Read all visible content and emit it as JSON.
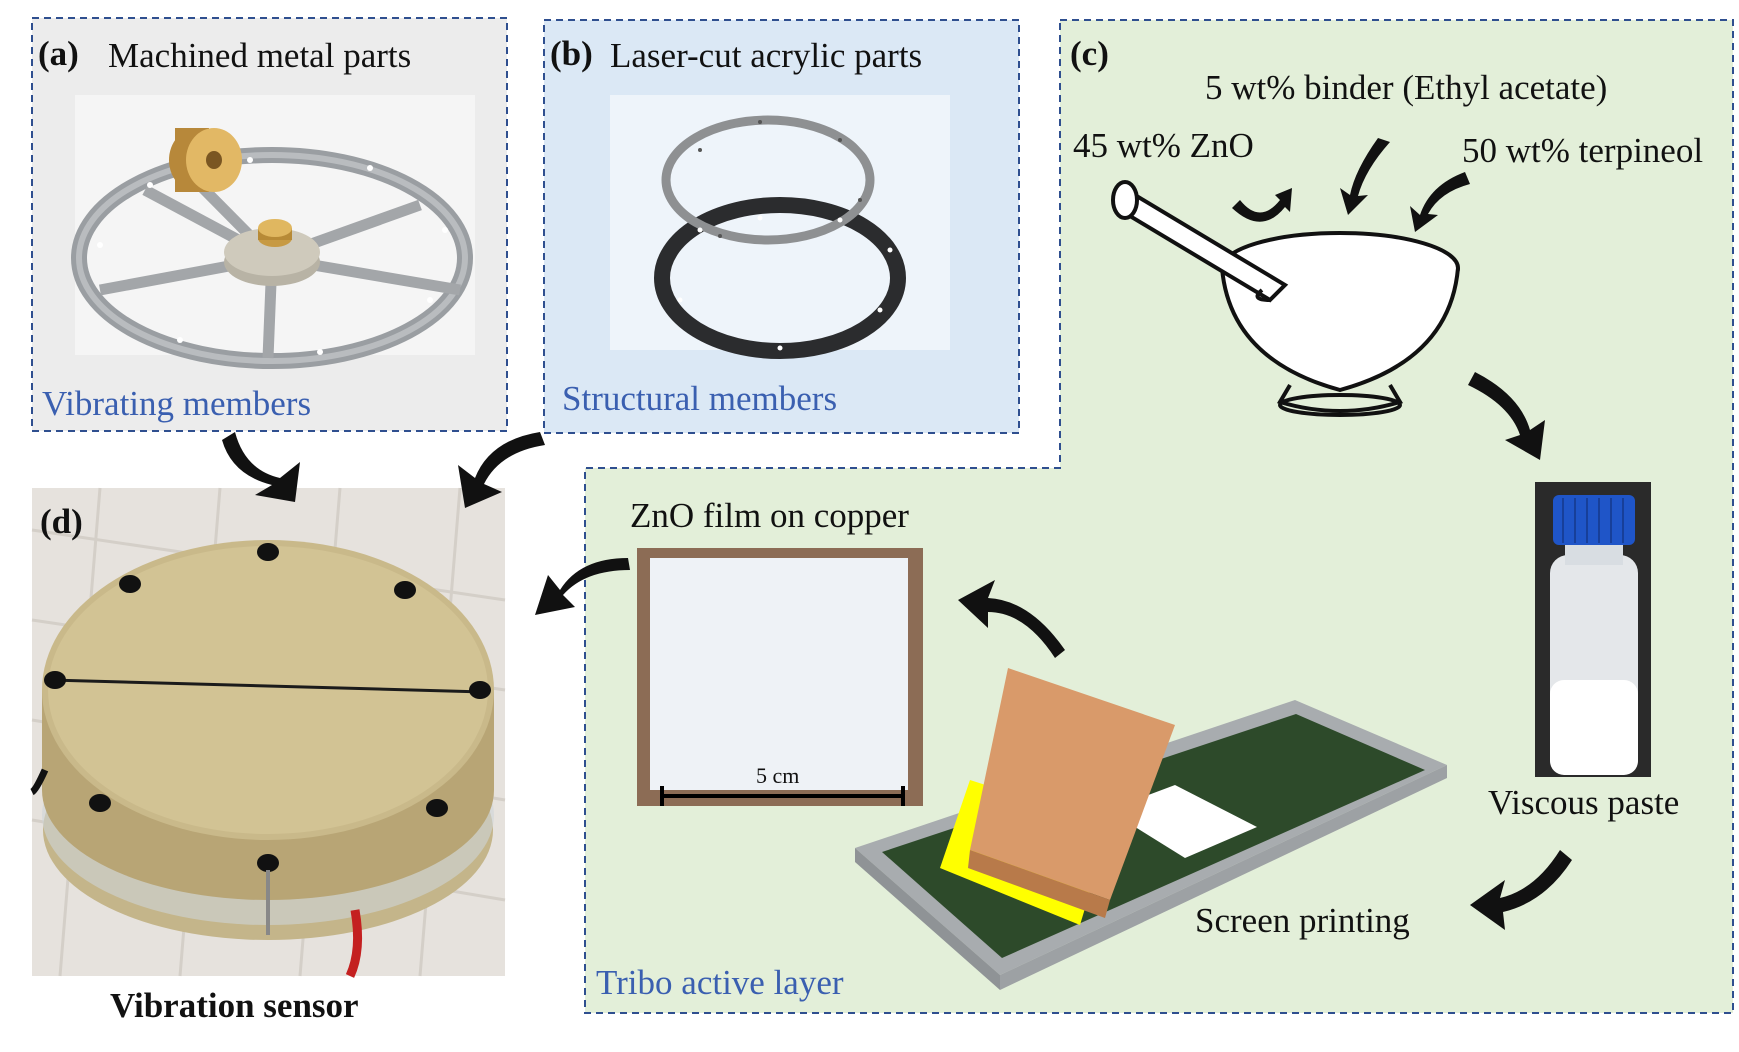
{
  "panels": {
    "a": {
      "letter": "(a)",
      "title": "Machined metal parts",
      "caption": "Vibrating members"
    },
    "b": {
      "letter": "(b)",
      "title": "Laser-cut acrylic parts",
      "caption": "Structural members"
    },
    "c": {
      "letter": "(c)",
      "binder": "5 wt% binder (Ethyl acetate)",
      "zno": "45 wt% ZnO",
      "terpineol": "50 wt% terpineol",
      "paste": "Viscous paste",
      "screen": "Screen printing",
      "film": "ZnO film on copper",
      "scale": "5 cm",
      "caption": "Tribo active layer"
    },
    "d": {
      "letter": "(d)",
      "caption": "Vibration sensor"
    }
  },
  "colors": {
    "dash_border": "#2f4f8f",
    "caption_blue": "#3a5fb0",
    "panel_c_bg": "#e3efd9",
    "panel_b_bg": "#dbe8f5",
    "panel_a_bg": "#e8e8e8",
    "squeegee_yellow": "#ffff00",
    "squeegee_tan": "#d99a6a",
    "screen_green": "#2d4a2a"
  }
}
